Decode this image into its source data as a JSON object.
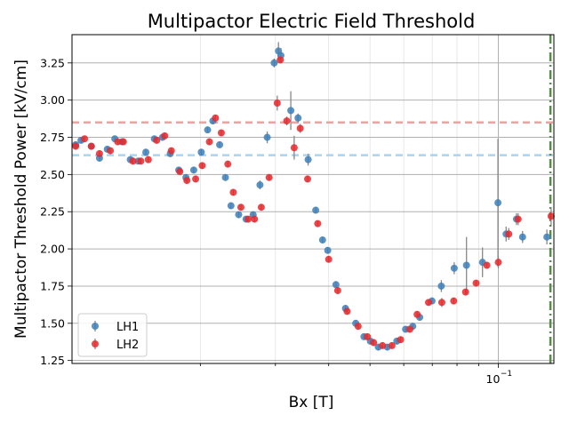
{
  "chart_data": {
    "type": "scatter",
    "title": "Multipactor Electric Field Threshold",
    "xlabel": "Bx [T]",
    "ylabel": "Multipactor Threshold Power [kV/cm]",
    "x_scale": "log",
    "xlim": [
      0.01,
      0.135
    ],
    "ylim": [
      1.23,
      3.44
    ],
    "y_ticks": [
      1.25,
      1.5,
      1.75,
      2.0,
      2.25,
      2.5,
      2.75,
      3.0,
      3.25
    ],
    "y_tick_labels": [
      "1.25",
      "1.50",
      "1.75",
      "2.00",
      "2.25",
      "2.50",
      "2.75",
      "3.00",
      "3.25"
    ],
    "x_major_ticks": [
      0.1
    ],
    "x_major_tick_labels": [
      "10",
      "−1"
    ],
    "grid": true,
    "legend_position": "lower-left",
    "reference_lines": [
      {
        "orientation": "horizontal",
        "y": 2.85,
        "color": "#f2a1a1",
        "style": "dashed"
      },
      {
        "orientation": "horizontal",
        "y": 2.63,
        "color": "#a9d4f2",
        "style": "dashed"
      },
      {
        "orientation": "vertical",
        "x": 0.1325,
        "color": "#5a8a4c",
        "style": "dashdot"
      }
    ],
    "series": [
      {
        "name": "LH1",
        "color": "#3c7fb8",
        "points": [
          [
            0.0102,
            2.7,
            0.02
          ],
          [
            0.0105,
            2.73,
            0.02
          ],
          [
            0.0111,
            2.69,
            0.02
          ],
          [
            0.0116,
            2.61,
            0.02
          ],
          [
            0.0121,
            2.67,
            0.02
          ],
          [
            0.0126,
            2.74,
            0.02
          ],
          [
            0.0131,
            2.72,
            0.02
          ],
          [
            0.0137,
            2.6,
            0.02
          ],
          [
            0.0143,
            2.59,
            0.02
          ],
          [
            0.0149,
            2.65,
            0.02
          ],
          [
            0.0156,
            2.74,
            0.02
          ],
          [
            0.0163,
            2.75,
            0.02
          ],
          [
            0.017,
            2.64,
            0.02
          ],
          [
            0.0178,
            2.53,
            0.02
          ],
          [
            0.0185,
            2.48,
            0.02
          ],
          [
            0.0193,
            2.53,
            0.02
          ],
          [
            0.0201,
            2.65,
            0.02
          ],
          [
            0.0208,
            2.8,
            0.02
          ],
          [
            0.0214,
            2.86,
            0.02
          ],
          [
            0.0222,
            2.7,
            0.02
          ],
          [
            0.0229,
            2.48,
            0.02
          ],
          [
            0.0236,
            2.29,
            0.02
          ],
          [
            0.0246,
            2.23,
            0.02
          ],
          [
            0.0256,
            2.2,
            0.02
          ],
          [
            0.0266,
            2.23,
            0.02
          ],
          [
            0.0276,
            2.43,
            0.03
          ],
          [
            0.0287,
            2.75,
            0.04
          ],
          [
            0.0298,
            3.25,
            0.03
          ],
          [
            0.0305,
            3.33,
            0.06
          ],
          [
            0.0309,
            3.3,
            0.05
          ],
          [
            0.0326,
            2.93,
            0.13
          ],
          [
            0.0339,
            2.88,
            0.03
          ],
          [
            0.0358,
            2.6,
            0.04
          ],
          [
            0.0373,
            2.26,
            0.02
          ],
          [
            0.0387,
            2.06,
            0.02
          ],
          [
            0.0398,
            1.99,
            0.02
          ],
          [
            0.0416,
            1.76,
            0.02
          ],
          [
            0.0438,
            1.6,
            0.02
          ],
          [
            0.0463,
            1.5,
            0.02
          ],
          [
            0.0484,
            1.41,
            0.02
          ],
          [
            0.0501,
            1.38,
            0.02
          ],
          [
            0.0523,
            1.34,
            0.02
          ],
          [
            0.0549,
            1.34,
            0.02
          ],
          [
            0.0578,
            1.38,
            0.02
          ],
          [
            0.0606,
            1.46,
            0.02
          ],
          [
            0.063,
            1.48,
            0.02
          ],
          [
            0.0654,
            1.54,
            0.02
          ],
          [
            0.0699,
            1.65,
            0.02
          ],
          [
            0.0735,
            1.75,
            0.04
          ],
          [
            0.0788,
            1.87,
            0.04
          ],
          [
            0.0842,
            1.89,
            0.19
          ],
          [
            0.0918,
            1.91,
            0.1
          ],
          [
            0.0998,
            2.31,
            0.43
          ],
          [
            0.1043,
            2.1,
            0.05
          ],
          [
            0.1103,
            2.2,
            0.04
          ],
          [
            0.114,
            2.08,
            0.04
          ],
          [
            0.13,
            2.08,
            0.05
          ]
        ]
      },
      {
        "name": "LH2",
        "color": "#e8272b",
        "points": [
          [
            0.0102,
            2.69,
            0.02
          ],
          [
            0.0107,
            2.74,
            0.02
          ],
          [
            0.0111,
            2.69,
            0.02
          ],
          [
            0.0116,
            2.64,
            0.02
          ],
          [
            0.0123,
            2.66,
            0.02
          ],
          [
            0.0128,
            2.72,
            0.02
          ],
          [
            0.0132,
            2.72,
            0.02
          ],
          [
            0.0139,
            2.59,
            0.02
          ],
          [
            0.0145,
            2.59,
            0.02
          ],
          [
            0.0151,
            2.6,
            0.02
          ],
          [
            0.0158,
            2.73,
            0.02
          ],
          [
            0.0165,
            2.76,
            0.02
          ],
          [
            0.0171,
            2.66,
            0.02
          ],
          [
            0.0179,
            2.52,
            0.02
          ],
          [
            0.0186,
            2.46,
            0.02
          ],
          [
            0.0195,
            2.47,
            0.02
          ],
          [
            0.0202,
            2.56,
            0.02
          ],
          [
            0.021,
            2.72,
            0.02
          ],
          [
            0.0217,
            2.88,
            0.02
          ],
          [
            0.0224,
            2.78,
            0.02
          ],
          [
            0.0232,
            2.57,
            0.02
          ],
          [
            0.0239,
            2.38,
            0.02
          ],
          [
            0.0249,
            2.28,
            0.02
          ],
          [
            0.0259,
            2.2,
            0.02
          ],
          [
            0.0268,
            2.2,
            0.02
          ],
          [
            0.0278,
            2.28,
            0.02
          ],
          [
            0.029,
            2.48,
            0.02
          ],
          [
            0.0303,
            2.98,
            0.05
          ],
          [
            0.0308,
            3.27,
            0.02
          ],
          [
            0.0319,
            2.86,
            0.03
          ],
          [
            0.0332,
            2.68,
            0.08
          ],
          [
            0.0343,
            2.81,
            0.03
          ],
          [
            0.0357,
            2.47,
            0.02
          ],
          [
            0.0377,
            2.17,
            0.02
          ],
          [
            0.04,
            1.93,
            0.02
          ],
          [
            0.042,
            1.72,
            0.02
          ],
          [
            0.0442,
            1.58,
            0.02
          ],
          [
            0.0469,
            1.48,
            0.02
          ],
          [
            0.0493,
            1.41,
            0.02
          ],
          [
            0.051,
            1.37,
            0.02
          ],
          [
            0.0535,
            1.35,
            0.02
          ],
          [
            0.0563,
            1.35,
            0.02
          ],
          [
            0.059,
            1.39,
            0.02
          ],
          [
            0.062,
            1.46,
            0.02
          ],
          [
            0.0645,
            1.56,
            0.02
          ],
          [
            0.0686,
            1.64,
            0.02
          ],
          [
            0.0737,
            1.64,
            0.03
          ],
          [
            0.0786,
            1.65,
            0.02
          ],
          [
            0.0838,
            1.71,
            0.02
          ],
          [
            0.0887,
            1.77,
            0.02
          ],
          [
            0.094,
            1.89,
            0.02
          ],
          [
            0.1,
            1.91,
            0.04
          ],
          [
            0.1058,
            2.1,
            0.04
          ],
          [
            0.1113,
            2.2,
            0.04
          ],
          [
            0.133,
            2.22,
            0.06
          ]
        ]
      }
    ]
  }
}
